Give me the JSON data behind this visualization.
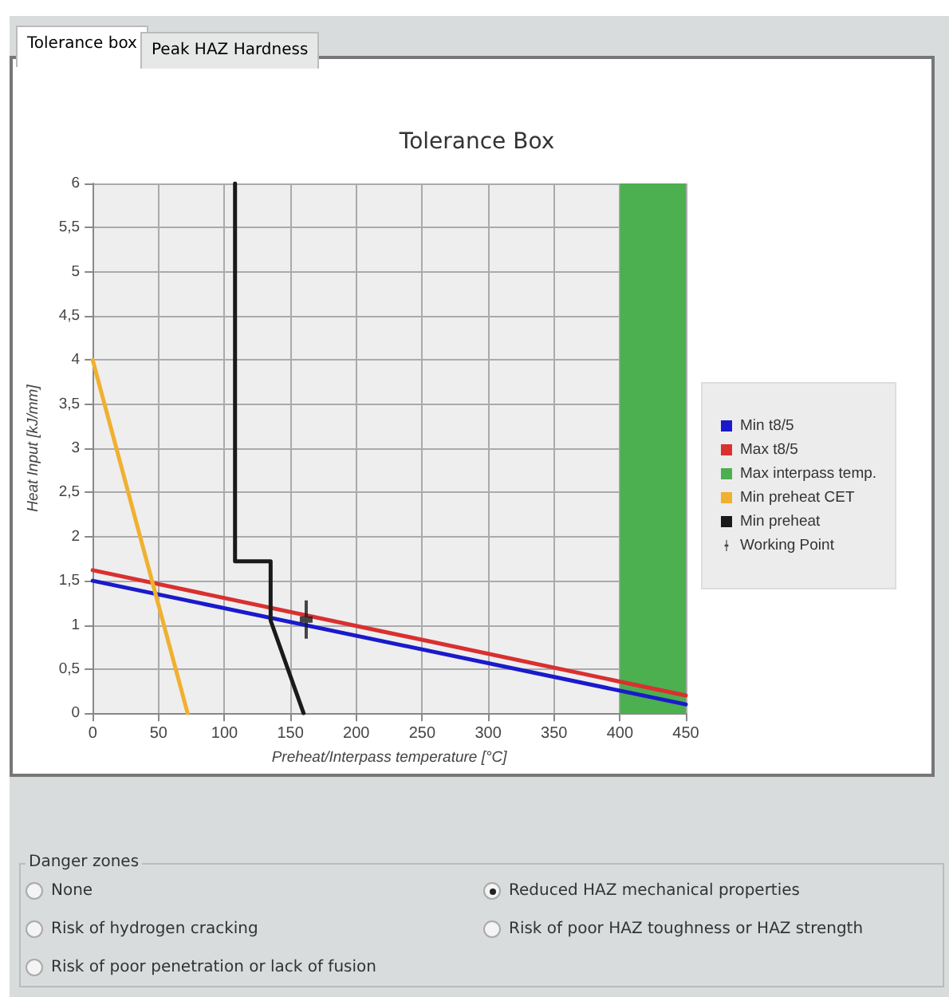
{
  "chart_data": {
    "type": "line",
    "title": "Tolerance Box",
    "xlabel": "Preheat/Interpass temperature [°C]",
    "ylabel": "Heat Input [kJ/mm]",
    "xlim": [
      0,
      450
    ],
    "xticks": [
      0,
      50,
      100,
      150,
      200,
      250,
      300,
      350,
      400,
      450
    ],
    "ylim": [
      0,
      6
    ],
    "yticks": [
      0,
      {
        "value": 0.5,
        "label": "0,5"
      },
      1,
      {
        "value": 1.5,
        "label": "1,5"
      },
      2,
      {
        "value": 2.5,
        "label": "2,5"
      },
      3,
      {
        "value": 3.5,
        "label": "3,5"
      },
      4,
      {
        "value": 4.5,
        "label": "4,5"
      },
      5,
      {
        "value": 5.5,
        "label": "5,5"
      },
      6
    ],
    "grid": true,
    "legend": "right",
    "marker": "none",
    "series": [
      {
        "name": "Min t8/5",
        "color": "#1a1acc",
        "x": [
          0,
          450
        ],
        "values": [
          1.5,
          0.1
        ]
      },
      {
        "name": "Max t8/5",
        "color": "#d93030",
        "x": [
          0,
          450
        ],
        "values": [
          1.62,
          0.2
        ]
      },
      {
        "name": "Max interpass temp.",
        "type": "area",
        "color": "#4caf50",
        "x": [
          400,
          450
        ],
        "values": [
          6,
          6
        ]
      },
      {
        "name": "Min preheat CET",
        "color": "#f0b030",
        "x": [
          0,
          72
        ],
        "values": [
          4,
          0
        ]
      },
      {
        "name": "Min preheat",
        "color": "#1a1a1a",
        "x": [
          160,
          135,
          135,
          108,
          108
        ],
        "values": [
          0,
          1.05,
          1.72,
          1.72,
          6
        ]
      },
      {
        "name": "Working Point",
        "type": "scatter",
        "marker": "cross",
        "color": "#1a1a1a",
        "x": [
          162
        ],
        "values": [
          1.06
        ]
      }
    ],
    "annotations": [
      "Tolerance box",
      "Peak HAZ Hardness",
      "Danger zones",
      "None",
      "Risk of hydrogen cracking",
      "Risk of poor penetration or lack of fusion",
      "Reduced HAZ mechanical properties",
      "Risk of poor HAZ toughness or HAZ strength"
    ]
  }
}
